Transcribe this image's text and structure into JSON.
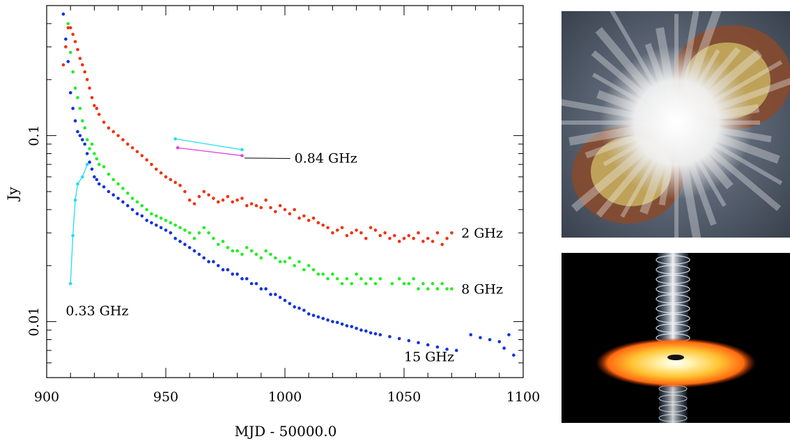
{
  "chart_data": {
    "type": "scatter",
    "xlabel": "MJD - 50000.0",
    "ylabel": "Jy",
    "xlim": [
      900,
      1100
    ],
    "ylim": [
      0.005,
      0.5
    ],
    "yscale": "log",
    "x_ticks": [
      900,
      950,
      1000,
      1050,
      1100
    ],
    "x_tick_labels": [
      "900",
      "950",
      "1000",
      "1050",
      "1100"
    ],
    "y_ticks": [
      0.01,
      0.1
    ],
    "y_tick_labels": [
      "0.01",
      "0.1"
    ],
    "grid": false,
    "series": [
      {
        "label": "2 GHz",
        "color": "#ee3311",
        "style": "points",
        "x": [
          907,
          908,
          909,
          910,
          911,
          912,
          913,
          914,
          915,
          916,
          917,
          918,
          919,
          920,
          921,
          922,
          924,
          926,
          928,
          930,
          932,
          934,
          936,
          938,
          940,
          942,
          944,
          946,
          948,
          950,
          952,
          954,
          956,
          958,
          960,
          962,
          964,
          966,
          968,
          970,
          972,
          974,
          976,
          978,
          980,
          982,
          984,
          986,
          988,
          990,
          992,
          994,
          996,
          998,
          1000,
          1002,
          1004,
          1006,
          1008,
          1010,
          1012,
          1014,
          1016,
          1018,
          1020,
          1022,
          1024,
          1026,
          1028,
          1030,
          1032,
          1034,
          1036,
          1038,
          1040,
          1042,
          1044,
          1046,
          1048,
          1050,
          1052,
          1054,
          1056,
          1058,
          1060,
          1062,
          1064,
          1066,
          1068,
          1070
        ],
        "y": [
          0.24,
          0.3,
          0.38,
          0.38,
          0.35,
          0.32,
          0.29,
          0.26,
          0.24,
          0.22,
          0.2,
          0.18,
          0.16,
          0.145,
          0.14,
          0.13,
          0.118,
          0.11,
          0.105,
          0.1,
          0.095,
          0.09,
          0.086,
          0.082,
          0.078,
          0.074,
          0.07,
          0.066,
          0.063,
          0.06,
          0.058,
          0.056,
          0.054,
          0.05,
          0.045,
          0.043,
          0.047,
          0.05,
          0.048,
          0.046,
          0.044,
          0.045,
          0.047,
          0.044,
          0.045,
          0.046,
          0.042,
          0.043,
          0.042,
          0.041,
          0.045,
          0.041,
          0.039,
          0.042,
          0.04,
          0.038,
          0.04,
          0.036,
          0.037,
          0.035,
          0.036,
          0.034,
          0.033,
          0.032,
          0.03,
          0.031,
          0.032,
          0.029,
          0.03,
          0.031,
          0.03,
          0.028,
          0.032,
          0.031,
          0.029,
          0.03,
          0.028,
          0.029,
          0.027,
          0.028,
          0.029,
          0.028,
          0.03,
          0.027,
          0.028,
          0.027,
          0.03,
          0.026,
          0.028,
          0.03
        ]
      },
      {
        "label": "8 GHz",
        "color": "#22ee22",
        "style": "points",
        "x": [
          909,
          910,
          911,
          912,
          913,
          914,
          915,
          916,
          917,
          918,
          919,
          920,
          921,
          922,
          924,
          926,
          928,
          930,
          932,
          934,
          936,
          938,
          940,
          942,
          944,
          946,
          948,
          950,
          952,
          954,
          956,
          958,
          960,
          962,
          964,
          966,
          968,
          970,
          972,
          974,
          976,
          978,
          980,
          982,
          984,
          986,
          988,
          990,
          992,
          994,
          996,
          998,
          1000,
          1002,
          1004,
          1006,
          1008,
          1010,
          1012,
          1014,
          1016,
          1018,
          1020,
          1022,
          1024,
          1026,
          1028,
          1030,
          1032,
          1034,
          1036,
          1038,
          1040,
          1045,
          1048,
          1050,
          1052,
          1054,
          1056,
          1058,
          1060,
          1062,
          1064,
          1066,
          1068,
          1070
        ],
        "y": [
          0.4,
          0.28,
          0.22,
          0.18,
          0.16,
          0.14,
          0.12,
          0.11,
          0.095,
          0.085,
          0.09,
          0.08,
          0.075,
          0.07,
          0.068,
          0.062,
          0.058,
          0.055,
          0.052,
          0.049,
          0.046,
          0.044,
          0.042,
          0.04,
          0.038,
          0.037,
          0.036,
          0.035,
          0.034,
          0.033,
          0.032,
          0.031,
          0.03,
          0.028,
          0.03,
          0.032,
          0.03,
          0.028,
          0.026,
          0.027,
          0.025,
          0.024,
          0.024,
          0.023,
          0.025,
          0.024,
          0.023,
          0.022,
          0.024,
          0.023,
          0.022,
          0.021,
          0.021,
          0.022,
          0.02,
          0.021,
          0.019,
          0.02,
          0.019,
          0.018,
          0.018,
          0.017,
          0.018,
          0.017,
          0.016,
          0.017,
          0.016,
          0.018,
          0.017,
          0.016,
          0.017,
          0.016,
          0.017,
          0.016,
          0.017,
          0.016,
          0.016,
          0.017,
          0.015,
          0.016,
          0.015,
          0.016,
          0.015,
          0.016,
          0.015,
          0.015
        ]
      },
      {
        "label": "15 GHz",
        "color": "#1133dd",
        "style": "points",
        "x": [
          907,
          908,
          909,
          910,
          911,
          912,
          913,
          914,
          915,
          916,
          917,
          918,
          919,
          920,
          921,
          922,
          924,
          926,
          928,
          930,
          932,
          934,
          936,
          938,
          940,
          942,
          944,
          946,
          948,
          950,
          952,
          954,
          956,
          958,
          960,
          962,
          964,
          966,
          968,
          970,
          972,
          974,
          976,
          978,
          980,
          982,
          984,
          986,
          988,
          990,
          992,
          994,
          996,
          998,
          1000,
          1002,
          1004,
          1006,
          1008,
          1010,
          1012,
          1014,
          1016,
          1018,
          1020,
          1022,
          1024,
          1026,
          1028,
          1030,
          1032,
          1034,
          1036,
          1038,
          1040,
          1044,
          1048,
          1052,
          1056,
          1060,
          1064,
          1068,
          1072,
          1078,
          1082,
          1086,
          1090,
          1092,
          1094,
          1096
        ],
        "y": [
          0.45,
          0.33,
          0.25,
          0.17,
          0.14,
          0.12,
          0.105,
          0.1,
          0.095,
          0.09,
          0.08,
          0.072,
          0.066,
          0.06,
          0.058,
          0.055,
          0.053,
          0.05,
          0.048,
          0.046,
          0.044,
          0.042,
          0.04,
          0.038,
          0.037,
          0.035,
          0.034,
          0.033,
          0.032,
          0.031,
          0.03,
          0.028,
          0.027,
          0.026,
          0.025,
          0.024,
          0.023,
          0.022,
          0.021,
          0.021,
          0.02,
          0.019,
          0.019,
          0.018,
          0.018,
          0.017,
          0.017,
          0.016,
          0.016,
          0.015,
          0.015,
          0.014,
          0.014,
          0.0135,
          0.013,
          0.0125,
          0.012,
          0.0118,
          0.0115,
          0.011,
          0.0108,
          0.0106,
          0.0104,
          0.0102,
          0.01,
          0.0099,
          0.0097,
          0.0095,
          0.0094,
          0.0092,
          0.009,
          0.0089,
          0.0087,
          0.0086,
          0.0085,
          0.0083,
          0.0081,
          0.0079,
          0.0077,
          0.0075,
          0.0073,
          0.0071,
          0.007,
          0.0085,
          0.0082,
          0.008,
          0.0078,
          0.0072,
          0.0085,
          0.0066
        ]
      },
      {
        "label": "0.33 GHz",
        "color": "#22ddee",
        "style": "line-points",
        "x": [
          910,
          911,
          912,
          913,
          915,
          917
        ],
        "y": [
          0.016,
          0.029,
          0.045,
          0.055,
          0.06,
          0.07
        ]
      },
      {
        "label": "0.84 GHz",
        "color": "#22ddee",
        "style": "line-points",
        "x": [
          954,
          982
        ],
        "y": [
          0.096,
          0.084
        ]
      },
      {
        "label": "",
        "color": "#dd44dd",
        "style": "line-points",
        "x": [
          955,
          982
        ],
        "y": [
          0.086,
          0.078
        ]
      }
    ],
    "annotations": [
      {
        "text": "2 GHz",
        "x": 1074,
        "y": 0.03
      },
      {
        "text": "8 GHz",
        "x": 1074,
        "y": 0.015
      },
      {
        "text": "15 GHz",
        "x": 1050,
        "y": 0.0065
      },
      {
        "text": "0.33 GHz",
        "x": 908,
        "y": 0.0115
      },
      {
        "text": "0.84 GHz",
        "x": 1004,
        "y": 0.076
      }
    ]
  },
  "images": [
    {
      "subject": "exploding star artwork",
      "colors": [
        "#f4f4f4",
        "#c08a5a",
        "#8a4a2a",
        "#e8e070",
        "#4f5966"
      ]
    },
    {
      "subject": "accretion disk with jet artwork",
      "colors": [
        "#000000",
        "#ffcc33",
        "#ff6a10",
        "#ffffff",
        "#8ac6ff"
      ]
    }
  ]
}
